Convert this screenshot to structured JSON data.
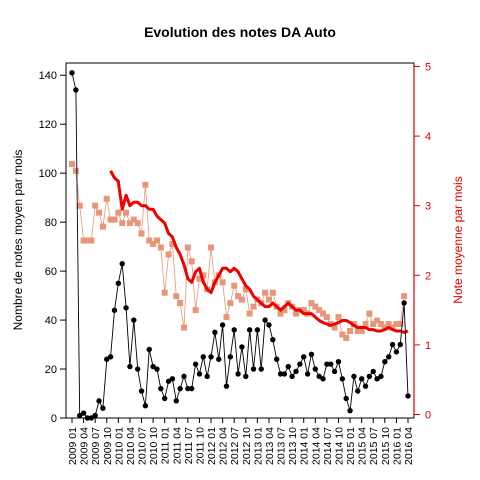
{
  "chart_data": {
    "type": "line",
    "title": "Evolution des notes DA Auto",
    "ylabel_left": "Nombre de notes moyen par mois",
    "ylabel_right": "Note moyenne par mois",
    "ylim_left": [
      0,
      145
    ],
    "ylim_right": [
      -0.05,
      5.05
    ],
    "yticks_left": [
      "0",
      "20",
      "40",
      "60",
      "80",
      "100",
      "120",
      "140"
    ],
    "yticks_right": [
      "0",
      "1",
      "2",
      "3",
      "4",
      "5"
    ],
    "xtick_labels": [
      "2009 01",
      "2009 04",
      "2009 07",
      "2009 10",
      "2010 01",
      "2010 04",
      "2010 07",
      "2010 10",
      "2011 01",
      "2011 04",
      "2011 07",
      "2011 10",
      "2012 01",
      "2012 04",
      "2012 07",
      "2012 10",
      "2013 01",
      "2013 04",
      "2013 07",
      "2013 10",
      "2014 01",
      "2014 04",
      "2014 07",
      "2014 10",
      "2015 01",
      "2015 04",
      "2015 07",
      "2015 10",
      "2016 01",
      "2016 04"
    ],
    "colors": {
      "count_series": "#000000",
      "rating_points": "#e8967a",
      "rating_smooth": "#ee0000",
      "right_axis": "#e00000"
    },
    "series": [
      {
        "axis": "left",
        "style": "line+points",
        "values": [
          141,
          134,
          1,
          2,
          0,
          0,
          1,
          7,
          4,
          24,
          25,
          44,
          55,
          63,
          45,
          21,
          40,
          20,
          11,
          5,
          28,
          21,
          20,
          12,
          8,
          15,
          16,
          7,
          12,
          17,
          12,
          12,
          22,
          18,
          25,
          17,
          25,
          35,
          24,
          38,
          13,
          25,
          36,
          18,
          29,
          17,
          36,
          20,
          36,
          20,
          40,
          38,
          32,
          24,
          18,
          18,
          21,
          17,
          19,
          22,
          25,
          18,
          26,
          20,
          17,
          16,
          22,
          22,
          19,
          23,
          16,
          8,
          3,
          17,
          11,
          16,
          13,
          17,
          19,
          16,
          17,
          23,
          25,
          30,
          27,
          30,
          47,
          9
        ]
      },
      {
        "axis": "right",
        "style": "points",
        "values": [
          3.6,
          3.5,
          3.0,
          2.5,
          2.5,
          2.5,
          3.0,
          2.9,
          2.7,
          3.1,
          2.8,
          2.8,
          2.9,
          2.75,
          2.9,
          2.75,
          2.8,
          2.75,
          2.6,
          3.3,
          2.5,
          2.45,
          2.5,
          2.4,
          1.75,
          2.3,
          2.45,
          1.7,
          1.6,
          1.25,
          2.4,
          2.2,
          1.5,
          1.95,
          2.0,
          1.8,
          2.4,
          1.9,
          2.0,
          1.9,
          1.4,
          1.6,
          1.85,
          1.7,
          1.65,
          1.8,
          1.45,
          1.55,
          1.65,
          1.6,
          1.75,
          1.65,
          1.75,
          1.55,
          1.45,
          1.5,
          1.6,
          1.55,
          1.45,
          1.5,
          1.5,
          1.45,
          1.6,
          1.55,
          1.5,
          1.45,
          1.4,
          1.3,
          1.25,
          1.4,
          1.15,
          1.1,
          1.2,
          1.3,
          1.2,
          1.2,
          1.3,
          1.45,
          1.3,
          1.35,
          1.3,
          1.25,
          1.3,
          1.25,
          1.3,
          1.3,
          1.7
        ]
      },
      {
        "axis": "right",
        "style": "smooth-line",
        "values": [
          3.5,
          3.4,
          3.35,
          2.95,
          3.15,
          3.0,
          3.05,
          3.05,
          3.0,
          3.0,
          2.95,
          2.95,
          2.85,
          2.8,
          2.75,
          2.6,
          2.55,
          2.4,
          2.3,
          2.15,
          1.95,
          1.9,
          2.05,
          2.1,
          1.9,
          1.8,
          1.75,
          1.9,
          2.0,
          2.1,
          2.1,
          2.05,
          2.1,
          2.05,
          1.95,
          1.85,
          1.8,
          1.7,
          1.65,
          1.6,
          1.55,
          1.55,
          1.6,
          1.55,
          1.5,
          1.55,
          1.6,
          1.55,
          1.5,
          1.5,
          1.45,
          1.45,
          1.45,
          1.4,
          1.35,
          1.32,
          1.3,
          1.28,
          1.3,
          1.32,
          1.35,
          1.35,
          1.32,
          1.28,
          1.25,
          1.25,
          1.25,
          1.22,
          1.22,
          1.2,
          1.2,
          1.22,
          1.25,
          1.22,
          1.2,
          1.2,
          1.18,
          1.2
        ],
        "x_start": 10
      }
    ]
  }
}
